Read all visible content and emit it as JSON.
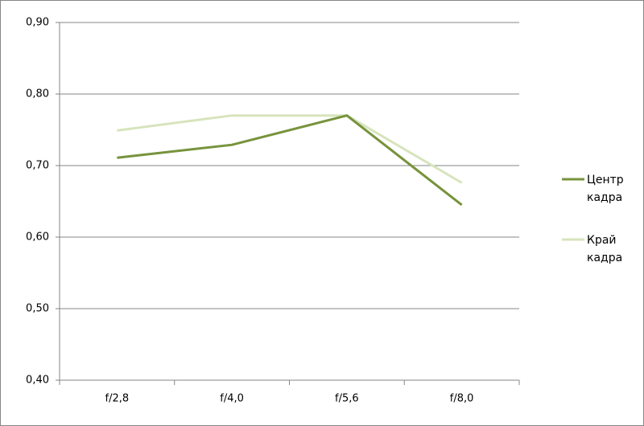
{
  "chart_data": {
    "type": "line",
    "categories": [
      "f/2,8",
      "f/4,0",
      "f/5,6",
      "f/8,0"
    ],
    "series": [
      {
        "name": "Центр кадра",
        "color": "#77933c",
        "values": [
          0.711,
          0.729,
          0.77,
          0.645
        ]
      },
      {
        "name": "Край кадра",
        "color": "#d7e4bd",
        "values": [
          0.749,
          0.77,
          0.77,
          0.676
        ]
      }
    ],
    "ylim": [
      0.4,
      0.9
    ],
    "yticks": [
      {
        "value": 0.4,
        "label": "0,40"
      },
      {
        "value": 0.5,
        "label": "0,50"
      },
      {
        "value": 0.6,
        "label": "0,60"
      },
      {
        "value": 0.7,
        "label": "0,70"
      },
      {
        "value": 0.8,
        "label": "0,80"
      },
      {
        "value": 0.9,
        "label": "0,90"
      }
    ],
    "grid": true,
    "legend": "right"
  }
}
